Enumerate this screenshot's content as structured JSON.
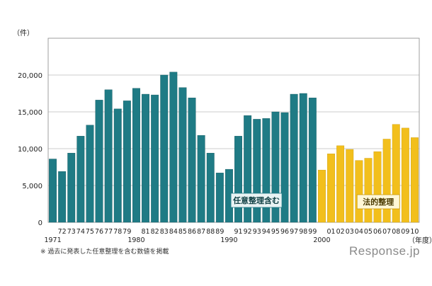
{
  "chart_data": {
    "type": "bar",
    "y_unit": "（件）",
    "x_unit": "（年度）",
    "ylim": [
      0,
      25000
    ],
    "y_ticks": [
      "0",
      "5,000",
      "10,000",
      "15,000",
      "20,000"
    ],
    "grid": true,
    "series": [
      {
        "name": "任意整理含む",
        "color": "#1f7b85",
        "categories": [
          "1971",
          "72",
          "73",
          "74",
          "75",
          "76",
          "77",
          "78",
          "79",
          "1980",
          "81",
          "82",
          "83",
          "84",
          "85",
          "86",
          "87",
          "88",
          "89",
          "1990",
          "91",
          "92",
          "93",
          "94",
          "95",
          "96",
          "97",
          "98",
          "99"
        ],
        "values": [
          8600,
          6900,
          9400,
          11700,
          13200,
          16600,
          18000,
          15400,
          16500,
          18200,
          17400,
          17300,
          20000,
          20400,
          18300,
          16900,
          11800,
          9400,
          6700,
          7200,
          11700,
          14500,
          14000,
          14100,
          15000,
          14900,
          17400,
          17500,
          16900
        ]
      },
      {
        "name": "法的整理",
        "color": "#f2bf1c",
        "categories": [
          "2000",
          "01",
          "02",
          "03",
          "04",
          "05",
          "06",
          "07",
          "08",
          "09",
          "10"
        ],
        "values": [
          7100,
          9300,
          10400,
          9900,
          8400,
          8700,
          9600,
          11300,
          13300,
          12800,
          11500
        ]
      }
    ],
    "x_tick_labels_top": [
      "72",
      "73",
      "74",
      "75",
      "76",
      "77",
      "78",
      "79",
      "",
      "81",
      "82",
      "83",
      "84",
      "85",
      "86",
      "87",
      "88",
      "89",
      "",
      "91",
      "92",
      "93",
      "94",
      "95",
      "96",
      "97",
      "98",
      "99",
      "",
      "01",
      "02",
      "03",
      "04",
      "05",
      "06",
      "07",
      "08",
      "09",
      "10"
    ],
    "x_tick_labels_bottom": [
      "1971",
      "1980",
      "1990",
      "2000"
    ]
  },
  "note": "※ 過去に発表した任意整理を含む数値を掲載",
  "watermark": "Response.jp"
}
